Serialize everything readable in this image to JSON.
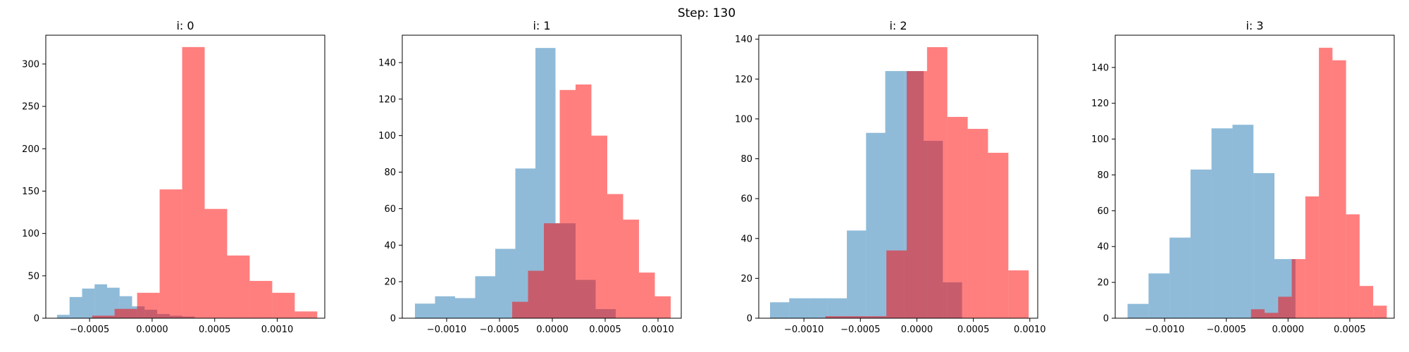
{
  "suptitle": "Step: 130",
  "colors": {
    "blue": "#1f77b4",
    "red": "#ff0000",
    "blue_alpha": 0.5,
    "red_alpha": 0.5
  },
  "chart_data": [
    {
      "type": "histogram",
      "title": "i: 0",
      "xlim": [
        -0.00085,
        0.00138
      ],
      "ylim": [
        0,
        334
      ],
      "xticks": [
        {
          "v": -0.0005,
          "label": "−0.0005"
        },
        {
          "v": 0,
          "label": "0.0000"
        },
        {
          "v": 0.0005,
          "label": "0.0005"
        },
        {
          "v": 0.001,
          "label": "0.0010"
        }
      ],
      "yticks": [
        0,
        50,
        100,
        150,
        200,
        250,
        300
      ],
      "series": [
        {
          "color": "blue",
          "edges": [
            -0.00076,
            -0.00066,
            -0.00056,
            -0.00046,
            -0.00036,
            -0.00026,
            -0.00016,
            -6e-05,
            4e-05,
            0.00014,
            0.00024,
            0.00034
          ],
          "counts": [
            4,
            25,
            35,
            40,
            36,
            26,
            14,
            10,
            5,
            3,
            2
          ]
        },
        {
          "color": "red",
          "edges": [
            -0.00048,
            -0.0003,
            -0.00012,
            6e-05,
            0.00024,
            0.00042,
            0.0006,
            0.00078,
            0.00096,
            0.00114,
            0.00132
          ],
          "counts": [
            3,
            11,
            30,
            152,
            320,
            129,
            74,
            44,
            30,
            8
          ]
        }
      ]
    },
    {
      "type": "histogram",
      "title": "i: 1",
      "xlim": [
        -0.00142,
        0.00122
      ],
      "ylim": [
        0,
        155
      ],
      "xticks": [
        {
          "v": -0.001,
          "label": "−0.0010"
        },
        {
          "v": -0.0005,
          "label": "−0.0005"
        },
        {
          "v": 0,
          "label": "0.0000"
        },
        {
          "v": 0.0005,
          "label": "0.0005"
        },
        {
          "v": 0.001,
          "label": "0.0010"
        }
      ],
      "yticks": [
        0,
        20,
        40,
        60,
        80,
        100,
        120,
        140
      ],
      "series": [
        {
          "color": "blue",
          "edges": [
            -0.0013,
            -0.00111,
            -0.00092,
            -0.00073,
            -0.00054,
            -0.00035,
            -0.00016,
            3e-05,
            0.00022,
            0.00041,
            0.0006
          ],
          "counts": [
            8,
            12,
            11,
            23,
            38,
            82,
            148,
            52,
            21,
            5
          ]
        },
        {
          "color": "red",
          "edges": [
            -0.00038,
            -0.00023,
            -8e-05,
            7e-05,
            0.00022,
            0.00037,
            0.00052,
            0.00067,
            0.00082,
            0.00097,
            0.00112
          ],
          "counts": [
            9,
            26,
            52,
            125,
            128,
            100,
            68,
            54,
            25,
            12
          ]
        }
      ]
    },
    {
      "type": "histogram",
      "title": "i: 2",
      "xlim": [
        -0.0014,
        0.00107
      ],
      "ylim": [
        0,
        142
      ],
      "xticks": [
        {
          "v": -0.001,
          "label": "−0.0010"
        },
        {
          "v": -0.0005,
          "label": "−0.0005"
        },
        {
          "v": 0,
          "label": "0.0000"
        },
        {
          "v": 0.0005,
          "label": "0.0005"
        },
        {
          "v": 0.001,
          "label": "0.0010"
        }
      ],
      "yticks": [
        0,
        20,
        40,
        60,
        80,
        100,
        120,
        140
      ],
      "series": [
        {
          "color": "blue",
          "edges": [
            -0.0013,
            -0.00113,
            -0.00096,
            -0.00079,
            -0.00062,
            -0.00045,
            -0.00028,
            -0.00011,
            6e-05,
            0.00023,
            0.0004
          ],
          "counts": [
            8,
            10,
            10,
            10,
            44,
            93,
            124,
            124,
            89,
            18
          ]
        },
        {
          "color": "red",
          "edges": [
            -0.00081,
            -0.00063,
            -0.00045,
            -0.00027,
            -9e-05,
            9e-05,
            0.00027,
            0.00045,
            0.00063,
            0.00081,
            0.00099
          ],
          "counts": [
            1,
            1,
            1,
            34,
            124,
            136,
            101,
            95,
            83,
            24
          ]
        }
      ]
    },
    {
      "type": "histogram",
      "title": "i: 3",
      "xlim": [
        -0.0014,
        0.00086
      ],
      "ylim": [
        0,
        158
      ],
      "xticks": [
        {
          "v": -0.001,
          "label": "−0.0010"
        },
        {
          "v": -0.0005,
          "label": "−0.0005"
        },
        {
          "v": 0,
          "label": "0.0000"
        },
        {
          "v": 0.0005,
          "label": "0.0005"
        }
      ],
      "yticks": [
        0,
        20,
        40,
        60,
        80,
        100,
        120,
        140
      ],
      "series": [
        {
          "color": "blue",
          "edges": [
            -0.0013,
            -0.00113,
            -0.00096,
            -0.00079,
            -0.00062,
            -0.00045,
            -0.00028,
            -0.00011,
            6e-05
          ],
          "counts": [
            8,
            25,
            45,
            83,
            106,
            108,
            81,
            33
          ]
        },
        {
          "color": "red",
          "edges": [
            -0.0003,
            -0.00019,
            -8e-05,
            3e-05,
            0.00014,
            0.00025,
            0.00036,
            0.00047,
            0.00058,
            0.00069,
            0.0008
          ],
          "counts": [
            5,
            3,
            12,
            33,
            68,
            151,
            144,
            58,
            18,
            7
          ]
        }
      ]
    }
  ]
}
